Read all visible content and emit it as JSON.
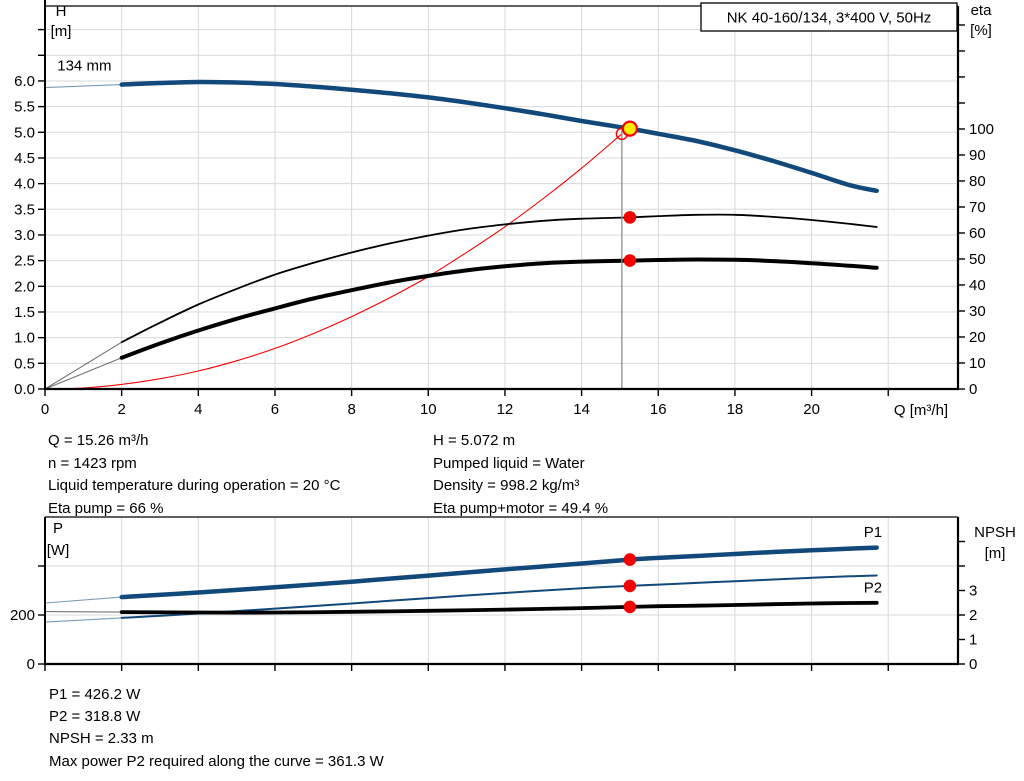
{
  "colors": {
    "curve_blue": "#11497b",
    "curve_black": "#000000",
    "curve_red": "#f40000",
    "marker_red": "#f40000",
    "marker_yellow": "#ffec00",
    "grid": "#d8d8d8",
    "axis": "#000000",
    "duty_line": "#8c8c8c",
    "text": "#000000",
    "background": "#ffffff"
  },
  "readout_top": {
    "left": [
      "Q = 15.26 m³/h",
      "n = 1423 rpm",
      "Liquid temperature during operation = 20 °C",
      "Eta pump = 66 %"
    ],
    "right": [
      "H = 5.072 m",
      "Pumped liquid = Water",
      "Density = 998.2 kg/m³",
      "Eta pump+motor = 49.4 %"
    ]
  },
  "results": [
    "P1 = 426.2 W",
    "P2 = 318.8 W",
    "NPSH = 2.33 m",
    "Max power P2 required along the curve = 361.3 W"
  ],
  "chart_data": [
    {
      "name": "qh-eta-chart",
      "type": "line",
      "title": "NK 40-160/134, 3*400 V, 50Hz",
      "x_axis": {
        "title": "Q [m³/h]",
        "min": 0,
        "max": 23.82,
        "ticks": [
          {
            "v": 0,
            "t": "0"
          },
          {
            "v": 2,
            "t": "2"
          },
          {
            "v": 4,
            "t": "4"
          },
          {
            "v": 6,
            "t": "6"
          },
          {
            "v": 8,
            "t": "8"
          },
          {
            "v": 10,
            "t": "10"
          },
          {
            "v": 12,
            "t": "12"
          },
          {
            "v": 14,
            "t": "14"
          },
          {
            "v": 16,
            "t": "16"
          },
          {
            "v": 18,
            "t": "18"
          },
          {
            "v": 20,
            "t": "20"
          },
          {
            "v": 22,
            "t": ""
          }
        ]
      },
      "y_left": {
        "title": [
          "H",
          "[m]"
        ],
        "min": 0,
        "max": 7.46,
        "ticks": [
          {
            "v": 0,
            "t": "0.0"
          },
          {
            "v": 0.5,
            "t": "0.5"
          },
          {
            "v": 1,
            "t": "1.0"
          },
          {
            "v": 1.5,
            "t": "1.5"
          },
          {
            "v": 2,
            "t": "2.0"
          },
          {
            "v": 2.5,
            "t": "2.5"
          },
          {
            "v": 3,
            "t": "3.0"
          },
          {
            "v": 3.5,
            "t": "3.5"
          },
          {
            "v": 4,
            "t": "4.0"
          },
          {
            "v": 4.5,
            "t": "4.5"
          },
          {
            "v": 5,
            "t": "5.0"
          },
          {
            "v": 5.5,
            "t": "5.5"
          },
          {
            "v": 6,
            "t": "6.0"
          },
          {
            "v": 6.5,
            "t": ""
          },
          {
            "v": 7,
            "t": ""
          }
        ]
      },
      "y_right": {
        "title": [
          "eta",
          "[%]"
        ],
        "min": 0,
        "max": 147.3,
        "ticks": [
          {
            "v": 0,
            "t": "0"
          },
          {
            "v": 10,
            "t": "10"
          },
          {
            "v": 20,
            "t": "20"
          },
          {
            "v": 30,
            "t": "30"
          },
          {
            "v": 40,
            "t": "40"
          },
          {
            "v": 50,
            "t": "50"
          },
          {
            "v": 60,
            "t": "60"
          },
          {
            "v": 70,
            "t": "70"
          },
          {
            "v": 80,
            "t": "80"
          },
          {
            "v": 90,
            "t": "90"
          },
          {
            "v": 100,
            "t": "100"
          },
          {
            "v": 110,
            "t": ""
          },
          {
            "v": 120,
            "t": ""
          },
          {
            "v": 130,
            "t": ""
          },
          {
            "v": 140,
            "t": ""
          }
        ]
      },
      "series": [
        {
          "name": "system-curve",
          "axis": "left",
          "color": "#f40000",
          "width": 1.1,
          "points": [
            [
              0,
              0
            ],
            [
              1,
              0.02
            ],
            [
              2,
              0.09
            ],
            [
              3,
              0.2
            ],
            [
              4,
              0.35
            ],
            [
              5,
              0.55
            ],
            [
              6,
              0.79
            ],
            [
              7,
              1.08
            ],
            [
              8,
              1.41
            ],
            [
              9,
              1.78
            ],
            [
              10,
              2.19
            ],
            [
              11,
              2.66
            ],
            [
              12,
              3.16
            ],
            [
              13,
              3.71
            ],
            [
              14,
              4.3
            ],
            [
              15.05,
              4.97
            ]
          ]
        },
        {
          "name": "eta-pump",
          "axis": "right",
          "color": "#000000",
          "width": 1.8,
          "leader": [
            [
              0,
              0
            ],
            [
              2,
              18
            ]
          ],
          "points": [
            [
              2,
              18
            ],
            [
              3,
              25.5
            ],
            [
              4,
              32.5
            ],
            [
              5,
              38.5
            ],
            [
              6,
              44
            ],
            [
              7,
              48.5
            ],
            [
              8,
              52.5
            ],
            [
              9,
              56
            ],
            [
              10,
              59
            ],
            [
              11,
              61.5
            ],
            [
              12,
              63.3
            ],
            [
              13,
              64.7
            ],
            [
              14,
              65.5
            ],
            [
              15.26,
              66
            ],
            [
              16,
              66.5
            ],
            [
              17,
              67
            ],
            [
              18,
              67
            ],
            [
              19,
              66.2
            ],
            [
              20,
              65
            ],
            [
              21,
              63.5
            ],
            [
              21.7,
              62.3
            ]
          ]
        },
        {
          "name": "eta-pump-motor",
          "axis": "right",
          "color": "#000000",
          "width": 4,
          "leader": [
            [
              0,
              0
            ],
            [
              2,
              12
            ]
          ],
          "points": [
            [
              2,
              12
            ],
            [
              3,
              17.5
            ],
            [
              4,
              22.5
            ],
            [
              5,
              27
            ],
            [
              6,
              31
            ],
            [
              7,
              34.8
            ],
            [
              8,
              38
            ],
            [
              9,
              41
            ],
            [
              10,
              43.5
            ],
            [
              11,
              45.6
            ],
            [
              12,
              47.2
            ],
            [
              13,
              48.4
            ],
            [
              14,
              49
            ],
            [
              15.26,
              49.4
            ],
            [
              16,
              49.6
            ],
            [
              17,
              49.8
            ],
            [
              18,
              49.7
            ],
            [
              19,
              49.2
            ],
            [
              20,
              48.4
            ],
            [
              21,
              47.4
            ],
            [
              21.7,
              46.6
            ]
          ]
        },
        {
          "name": "head-curve-134mm",
          "axis": "left",
          "color": "#11497b",
          "width": 4.5,
          "leader": [
            [
              0,
              5.87
            ],
            [
              2,
              5.93
            ]
          ],
          "points": [
            [
              2,
              5.93
            ],
            [
              3,
              5.96
            ],
            [
              4,
              5.98
            ],
            [
              5,
              5.97
            ],
            [
              6,
              5.94
            ],
            [
              7,
              5.89
            ],
            [
              8,
              5.83
            ],
            [
              9,
              5.76
            ],
            [
              10,
              5.68
            ],
            [
              11,
              5.58
            ],
            [
              12,
              5.47
            ],
            [
              13,
              5.35
            ],
            [
              14,
              5.22
            ],
            [
              15.26,
              5.07
            ],
            [
              16,
              4.97
            ],
            [
              17,
              4.83
            ],
            [
              18,
              4.65
            ],
            [
              19,
              4.44
            ],
            [
              20,
              4.21
            ],
            [
              21,
              3.97
            ],
            [
              21.7,
              3.86
            ]
          ]
        }
      ],
      "duty_line": {
        "q": 15.05,
        "axis": "left",
        "from": 5.07,
        "to": 0
      },
      "markers": [
        {
          "name": "requested-duty-point",
          "style": "open",
          "axis": "left",
          "q": 15.05,
          "v": 4.97
        },
        {
          "name": "eta-pump-duty-dot",
          "style": "dot",
          "axis": "right",
          "q": 15.26,
          "v": 66
        },
        {
          "name": "eta-pump-motor-duty-dot",
          "style": "dot",
          "axis": "right",
          "q": 15.26,
          "v": 49.4
        },
        {
          "name": "duty-point",
          "style": "yellow",
          "axis": "left",
          "q": 15.26,
          "v": 5.072
        }
      ],
      "labels": [
        {
          "text": "134 mm",
          "q": 0.32,
          "v": 6.2,
          "axis": "left",
          "color": "#000000",
          "anchor": "start"
        }
      ]
    },
    {
      "name": "power-npsh-chart",
      "type": "line",
      "title": "",
      "x_axis": {
        "title": "",
        "min": 0,
        "max": 23.82,
        "ticks": [
          {
            "v": 0,
            "t": ""
          },
          {
            "v": 2,
            "t": ""
          },
          {
            "v": 4,
            "t": ""
          },
          {
            "v": 6,
            "t": ""
          },
          {
            "v": 8,
            "t": ""
          },
          {
            "v": 10,
            "t": ""
          },
          {
            "v": 12,
            "t": ""
          },
          {
            "v": 14,
            "t": ""
          },
          {
            "v": 16,
            "t": ""
          },
          {
            "v": 18,
            "t": ""
          },
          {
            "v": 20,
            "t": ""
          },
          {
            "v": 22,
            "t": ""
          }
        ]
      },
      "y_left": {
        "title": [
          "P",
          "[W]"
        ],
        "min": 0,
        "max": 600,
        "ticks": [
          {
            "v": 0,
            "t": "0"
          },
          {
            "v": 200,
            "t": "200"
          },
          {
            "v": 400,
            "t": ""
          }
        ]
      },
      "y_right": {
        "title": [
          "NPSH",
          "[m]"
        ],
        "min": 0,
        "max": 6,
        "ticks": [
          {
            "v": 0,
            "t": "0"
          },
          {
            "v": 1,
            "t": "1"
          },
          {
            "v": 2,
            "t": "2"
          },
          {
            "v": 3,
            "t": "3"
          },
          {
            "v": 4,
            "t": ""
          },
          {
            "v": 5,
            "t": ""
          }
        ]
      },
      "series": [
        {
          "name": "p1-curve",
          "axis": "left",
          "color": "#11497b",
          "width": 4.5,
          "leader": [
            [
              0,
              249
            ],
            [
              2,
              273
            ]
          ],
          "points": [
            [
              2,
              273
            ],
            [
              4,
              292
            ],
            [
              6,
              313
            ],
            [
              8,
              336
            ],
            [
              10,
              361
            ],
            [
              12,
              386
            ],
            [
              14,
              410
            ],
            [
              15.26,
              426.2
            ],
            [
              16,
              433
            ],
            [
              17,
              441
            ],
            [
              18,
              449
            ],
            [
              19,
              457
            ],
            [
              20,
              464
            ],
            [
              21,
              471
            ],
            [
              21.7,
              475
            ]
          ]
        },
        {
          "name": "p2-curve",
          "axis": "left",
          "color": "#11497b",
          "width": 2,
          "leader": [
            [
              0,
              171
            ],
            [
              2,
              188
            ]
          ],
          "points": [
            [
              2,
              188
            ],
            [
              4,
              206
            ],
            [
              6,
              226
            ],
            [
              8,
              247
            ],
            [
              10,
              269
            ],
            [
              12,
              290
            ],
            [
              14,
              309
            ],
            [
              15.26,
              318.8
            ],
            [
              16,
              324
            ],
            [
              17,
              331
            ],
            [
              18,
              338
            ],
            [
              19,
              345
            ],
            [
              20,
              352
            ],
            [
              21,
              358
            ],
            [
              21.7,
              361.3
            ]
          ]
        },
        {
          "name": "npsh-curve",
          "axis": "right",
          "color": "#000000",
          "width": 3.8,
          "leader": [
            [
              0,
              2.14
            ],
            [
              2,
              2.12
            ]
          ],
          "points": [
            [
              2,
              2.12
            ],
            [
              4,
              2.1
            ],
            [
              6,
              2.1
            ],
            [
              8,
              2.13
            ],
            [
              10,
              2.17
            ],
            [
              12,
              2.22
            ],
            [
              14,
              2.28
            ],
            [
              15.26,
              2.33
            ],
            [
              16,
              2.36
            ],
            [
              17,
              2.38
            ],
            [
              18,
              2.41
            ],
            [
              19,
              2.44
            ],
            [
              20,
              2.47
            ],
            [
              21,
              2.49
            ],
            [
              21.7,
              2.5
            ]
          ]
        }
      ],
      "markers": [
        {
          "name": "p1-duty-dot",
          "style": "dot",
          "axis": "left",
          "q": 15.26,
          "v": 426.2
        },
        {
          "name": "p2-duty-dot",
          "style": "dot",
          "axis": "left",
          "q": 15.26,
          "v": 318.8
        },
        {
          "name": "npsh-duty-dot",
          "style": "dot",
          "axis": "right",
          "q": 15.26,
          "v": 2.33
        }
      ],
      "labels": [
        {
          "text": "P1",
          "q": 21.6,
          "v": 518,
          "axis": "left",
          "color": "#11497b",
          "anchor": "middle"
        },
        {
          "text": "P2",
          "q": 21.6,
          "v": 292,
          "axis": "left",
          "color": "#11497b",
          "anchor": "middle"
        }
      ]
    }
  ]
}
